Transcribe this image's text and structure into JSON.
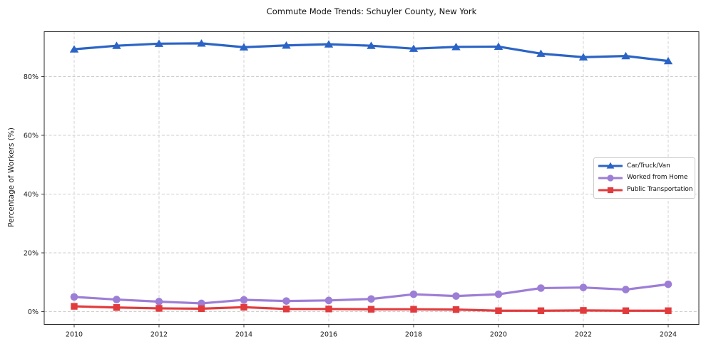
{
  "chart_data": {
    "type": "line",
    "title": "Commute Mode Trends: Schuyler County, New York",
    "xlabel": "",
    "ylabel": "Percentage of Workers (%)",
    "x": [
      2010,
      2011,
      2012,
      2013,
      2014,
      2015,
      2016,
      2017,
      2018,
      2019,
      2020,
      2021,
      2022,
      2023,
      2024
    ],
    "x_ticks": [
      2010,
      2012,
      2014,
      2016,
      2018,
      2020,
      2022,
      2024
    ],
    "x_tick_labels": [
      "2010",
      "2012",
      "2014",
      "2016",
      "2018",
      "2020",
      "2022",
      "2024"
    ],
    "y_ticks": [
      0,
      20,
      40,
      60,
      80
    ],
    "y_tick_labels": [
      "0%",
      "20%",
      "40%",
      "60%",
      "80%"
    ],
    "xlim": [
      2009.3,
      2024.7
    ],
    "ylim": [
      -4.3,
      95.4
    ],
    "grid": true,
    "grid_style": "dashed",
    "legend_position": "center right",
    "series": [
      {
        "id": "car-truck-van",
        "name": "Car/Truck/Van",
        "color": "#2b64c5",
        "marker": "triangle",
        "values": [
          89.3,
          90.5,
          91.2,
          91.3,
          90.0,
          90.6,
          91.0,
          90.5,
          89.5,
          90.1,
          90.2,
          87.8,
          86.6,
          87.0,
          85.3
        ]
      },
      {
        "id": "worked-from-home",
        "name": "Worked from Home",
        "color": "#9d7ed6",
        "marker": "circle",
        "values": [
          5.0,
          4.1,
          3.4,
          2.8,
          4.0,
          3.6,
          3.8,
          4.3,
          5.9,
          5.3,
          5.9,
          8.0,
          8.2,
          7.5,
          9.3
        ]
      },
      {
        "id": "public-transportation",
        "name": "Public Transportation",
        "color": "#e23b3d",
        "marker": "square",
        "values": [
          1.8,
          1.4,
          1.1,
          1.0,
          1.5,
          0.9,
          0.9,
          0.8,
          0.8,
          0.7,
          0.3,
          0.3,
          0.4,
          0.3,
          0.3
        ]
      }
    ]
  }
}
